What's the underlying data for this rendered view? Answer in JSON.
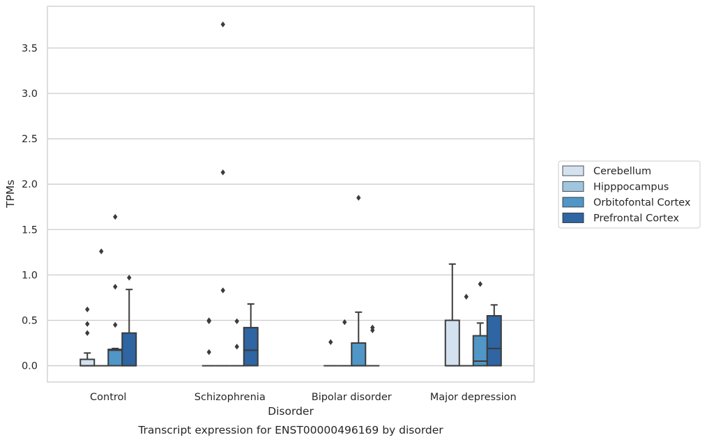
{
  "caption": "Transcript expression for ENST00000496169 by disorder",
  "chart_data": {
    "type": "box",
    "xlabel": "Disorder",
    "ylabel": "TPMs",
    "categories": [
      "Control",
      "Schizophrenia",
      "Bipolar disorder",
      "Major depression"
    ],
    "ylim": [
      -0.18,
      3.96
    ],
    "yticks": [
      "0.0",
      "0.5",
      "1.0",
      "1.5",
      "2.0",
      "2.5",
      "3.0",
      "3.5"
    ],
    "grid": true,
    "legend_position": "right",
    "series": [
      {
        "name": "Cerebellum",
        "color": "#d4e2f0",
        "boxes": [
          {
            "q1": 0.0,
            "median": 0.0,
            "q3": 0.07,
            "whislo": 0.0,
            "whishi": 0.14,
            "fliers": [
              0.62,
              0.46,
              0.36
            ]
          },
          {
            "q1": 0.0,
            "median": 0.0,
            "q3": 0.0,
            "whislo": 0.0,
            "whishi": 0.0,
            "fliers": [
              0.5,
              0.49,
              0.15
            ]
          },
          {
            "q1": 0.0,
            "median": 0.0,
            "q3": 0.0,
            "whislo": 0.0,
            "whishi": 0.0,
            "fliers": [
              0.26
            ]
          },
          {
            "q1": 0.0,
            "median": 0.0,
            "q3": 0.5,
            "whislo": 0.0,
            "whishi": 1.12,
            "fliers": []
          }
        ]
      },
      {
        "name": "Hipppocampus",
        "color": "#9fc5df",
        "boxes": [
          {
            "q1": 0.0,
            "median": 0.0,
            "q3": 0.0,
            "whislo": 0.0,
            "whishi": 0.0,
            "fliers": [
              1.26
            ]
          },
          {
            "q1": 0.0,
            "median": 0.0,
            "q3": 0.0,
            "whislo": 0.0,
            "whishi": 0.0,
            "fliers": [
              0.83,
              2.13,
              3.76
            ]
          },
          {
            "q1": 0.0,
            "median": 0.0,
            "q3": 0.0,
            "whislo": 0.0,
            "whishi": 0.0,
            "fliers": [
              0.48
            ]
          },
          {
            "q1": 0.0,
            "median": 0.0,
            "q3": 0.0,
            "whislo": 0.0,
            "whishi": 0.0,
            "fliers": [
              0.76
            ]
          }
        ]
      },
      {
        "name": "Orbitofontal Cortex",
        "color": "#5096c6",
        "boxes": [
          {
            "q1": 0.0,
            "median": 0.17,
            "q3": 0.18,
            "whislo": 0.0,
            "whishi": 0.19,
            "fliers": [
              0.45,
              0.87,
              1.64
            ]
          },
          {
            "q1": 0.0,
            "median": 0.0,
            "q3": 0.0,
            "whislo": 0.0,
            "whishi": 0.0,
            "fliers": [
              0.49,
              0.21
            ]
          },
          {
            "q1": 0.0,
            "median": 0.0,
            "q3": 0.25,
            "whislo": 0.0,
            "whishi": 0.59,
            "fliers": [
              1.85
            ]
          },
          {
            "q1": 0.0,
            "median": 0.05,
            "q3": 0.33,
            "whislo": 0.0,
            "whishi": 0.47,
            "fliers": [
              0.9
            ]
          }
        ]
      },
      {
        "name": "Prefrontal Cortex",
        "color": "#2e65a2",
        "boxes": [
          {
            "q1": 0.0,
            "median": 0.0,
            "q3": 0.36,
            "whislo": 0.0,
            "whishi": 0.84,
            "fliers": [
              0.97
            ]
          },
          {
            "q1": 0.0,
            "median": 0.17,
            "q3": 0.42,
            "whislo": 0.0,
            "whishi": 0.68,
            "fliers": []
          },
          {
            "q1": 0.0,
            "median": 0.0,
            "q3": 0.0,
            "whislo": 0.0,
            "whishi": 0.0,
            "fliers": [
              0.42,
              0.39
            ]
          },
          {
            "q1": 0.0,
            "median": 0.19,
            "q3": 0.55,
            "whislo": 0.0,
            "whishi": 0.67,
            "fliers": []
          }
        ]
      }
    ]
  }
}
